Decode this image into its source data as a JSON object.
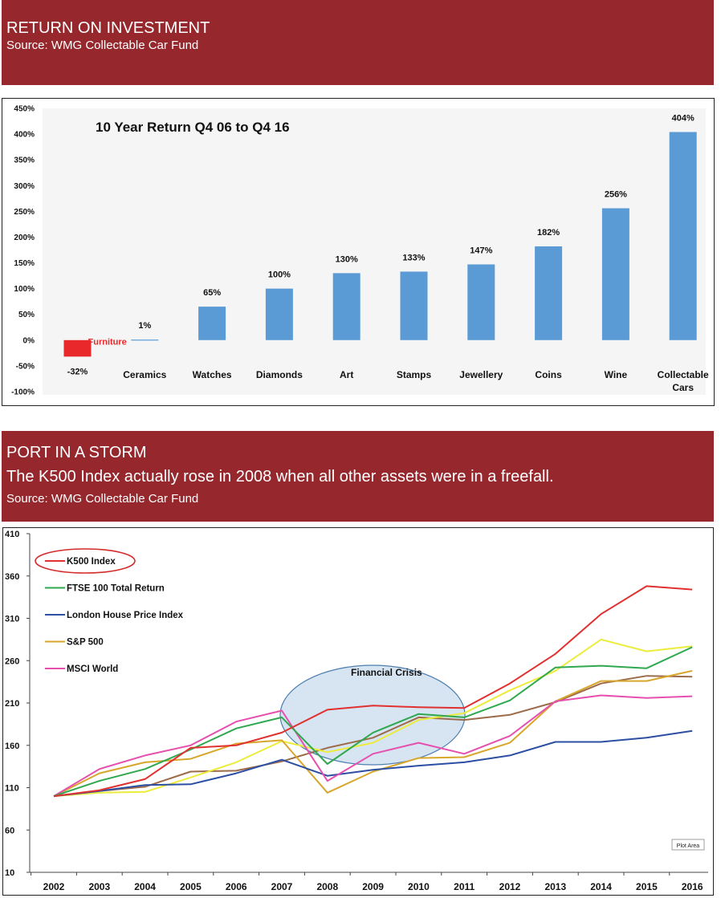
{
  "section1": {
    "heading": "RETURN ON INVESTMENT",
    "source": "Source: WMG Collectable Car Fund"
  },
  "section2": {
    "heading": "PORT IN A STORM",
    "subheading": "The K500 Index actually rose in 2008 when all other assets were in a freefall.",
    "source": "Source: WMG Collectable Car Fund"
  },
  "chart_data": [
    {
      "type": "bar",
      "title": "10 Year Return Q4 06 to Q4 16",
      "categories": [
        "Furniture",
        "Ceramics",
        "Watches",
        "Diamonds",
        "Art",
        "Stamps",
        "Jewellery",
        "Coins",
        "Wine",
        "Collectable Cars"
      ],
      "category_label_lines": [
        [
          ""
        ],
        [
          "Ceramics"
        ],
        [
          "Watches"
        ],
        [
          "Diamonds"
        ],
        [
          "Art"
        ],
        [
          "Stamps"
        ],
        [
          "Jewellery"
        ],
        [
          "Coins"
        ],
        [
          "Wine"
        ],
        [
          "Collectable",
          "Cars"
        ]
      ],
      "inline_category_label": "Furniture",
      "values": [
        -32,
        1,
        65,
        100,
        130,
        133,
        147,
        182,
        256,
        404
      ],
      "value_labels": [
        "-32%",
        "1%",
        "65%",
        "100%",
        "130%",
        "133%",
        "147%",
        "182%",
        "256%",
        "404%"
      ],
      "ylim": [
        -100,
        450
      ],
      "yticks": [
        -100,
        -50,
        0,
        50,
        100,
        150,
        200,
        250,
        300,
        350,
        400,
        450
      ],
      "ytick_labels": [
        "-100%",
        "-50%",
        "0%",
        "50%",
        "100%",
        "150%",
        "200%",
        "250%",
        "300%",
        "350%",
        "400%",
        "450%"
      ],
      "colors": {
        "positive": "#5b9bd5",
        "negative": "#e8282a",
        "label_negative": "#e8282a"
      },
      "grid": false
    },
    {
      "type": "line",
      "x": [
        "2002",
        "2003",
        "2004",
        "2005",
        "2006",
        "2007",
        "2008",
        "2009",
        "2010",
        "2011",
        "2012",
        "2013",
        "2014",
        "2015",
        "2016"
      ],
      "ylim": [
        10,
        410
      ],
      "yticks": [
        10,
        60,
        110,
        160,
        210,
        260,
        310,
        360,
        410
      ],
      "series": [
        {
          "name": "K500 Index",
          "color": "#e0302f",
          "values": [
            100,
            107,
            120,
            157,
            160,
            175,
            202,
            207,
            205,
            204,
            233,
            268,
            315,
            348,
            344
          ]
        },
        {
          "name": "FTSE 100 Total Return",
          "color": "#2fa84f",
          "values": [
            100,
            118,
            132,
            155,
            180,
            193,
            138,
            175,
            197,
            193,
            213,
            252,
            254,
            251,
            276
          ]
        },
        {
          "name": "London House Price Index",
          "color": "#2c4fa3",
          "values": [
            100,
            106,
            113,
            114,
            127,
            143,
            124,
            131,
            136,
            140,
            148,
            164,
            164,
            169,
            177
          ]
        },
        {
          "name": "S&P 500",
          "color": "#d9a62c",
          "values": [
            100,
            127,
            140,
            144,
            162,
            166,
            104,
            129,
            145,
            146,
            163,
            212,
            236,
            236,
            248
          ]
        },
        {
          "name": "MSCI World",
          "color": "#e64fae",
          "values": [
            100,
            132,
            148,
            160,
            188,
            201,
            118,
            150,
            163,
            150,
            171,
            212,
            219,
            216,
            218
          ]
        },
        {
          "name": "",
          "color": "#ecec3a",
          "values": [
            100,
            104,
            105,
            122,
            140,
            165,
            152,
            163,
            190,
            198,
            225,
            248,
            285,
            271,
            277
          ]
        },
        {
          "name": "",
          "color": "#9c6b4a",
          "values": [
            100,
            106,
            111,
            129,
            130,
            141,
            157,
            169,
            193,
            190,
            196,
            211,
            233,
            242,
            241
          ]
        }
      ],
      "legend": {
        "placement": "top-left",
        "highlighted": "K500 Index"
      },
      "annotation": "Financial Crisis",
      "plot_area_tag": "Plot Area",
      "grid": false
    }
  ]
}
